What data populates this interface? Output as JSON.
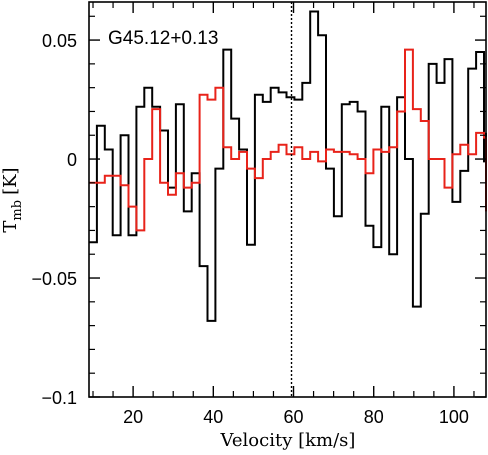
{
  "chart_data": {
    "type": "line",
    "title": "G45.12+0.13",
    "xlabel": "Velocity [km/s]",
    "ylabel_main": "T",
    "ylabel_sub": "mb",
    "ylabel_unit": "[K]",
    "xlim": [
      9,
      108
    ],
    "ylim": [
      -0.1,
      0.066
    ],
    "x_ticks": [
      20,
      40,
      60,
      80,
      100
    ],
    "y_ticks": [
      -0.1,
      -0.05,
      0,
      0.05
    ],
    "x_tick_labels": [
      "20",
      "40",
      "60",
      "80",
      "100"
    ],
    "y_tick_labels": [
      "−0.1",
      "−0.05",
      "0",
      "0.05"
    ],
    "vline_x": 59.5,
    "bin_width": 1.97,
    "bin_start": 9.0,
    "series": [
      {
        "color": "#000000",
        "values": [
          -0.035,
          0.014,
          0.004,
          -0.032,
          0.01,
          -0.032,
          0.022,
          0.03,
          0.022,
          0.012,
          -0.012,
          0.023,
          -0.022,
          -0.006,
          -0.045,
          -0.068,
          -0.004,
          0.046,
          0.017,
          0.004,
          -0.036,
          0.027,
          0.024,
          0.03,
          0.028,
          0.026,
          0.025,
          0.032,
          0.062,
          0.052,
          -0.004,
          -0.024,
          0.023,
          0.024,
          0.02,
          -0.028,
          -0.037,
          0.022,
          -0.04,
          0.026,
          0.0,
          -0.062,
          -0.023,
          0.04,
          0.032,
          0.042,
          -0.018,
          -0.005,
          0.038,
          0.045,
          -0.001,
          0.011,
          0.0
        ]
      },
      {
        "color": "#e8231a",
        "values": [
          -0.01,
          -0.01,
          -0.007,
          -0.007,
          -0.011,
          -0.02,
          -0.03,
          0.0,
          0.021,
          -0.01,
          -0.015,
          -0.006,
          -0.012,
          -0.01,
          0.027,
          0.025,
          0.03,
          0.005,
          0.0,
          0.003,
          -0.004,
          -0.008,
          0.0,
          0.003,
          0.006,
          0.002,
          0.005,
          0.0,
          0.003,
          -0.001,
          0.004,
          0.003,
          0.003,
          0.002,
          0.0,
          -0.006,
          0.004,
          0.003,
          0.005,
          0.02,
          0.046,
          0.021,
          0.016,
          0.0,
          0.0,
          -0.012,
          0.002,
          0.006,
          0.002,
          0.011,
          0.009,
          -0.022,
          -0.018,
          -0.014,
          0.003,
          0.0,
          -0.01
        ]
      }
    ]
  }
}
